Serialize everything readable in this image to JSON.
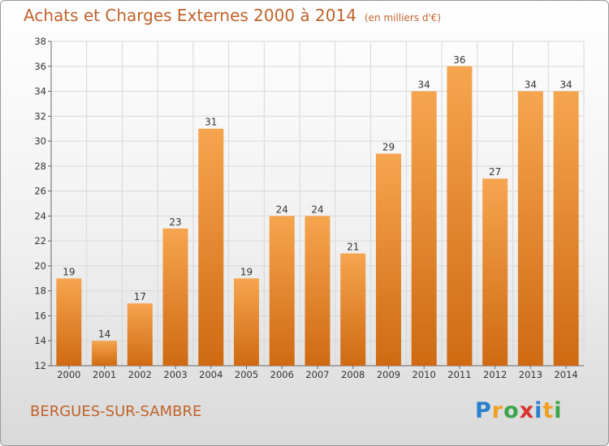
{
  "header": {
    "title": "Achats et Charges Externes 2000 à 2014",
    "unit": "(en milliers d'€)"
  },
  "footer": {
    "commune": "BERGUES-SUR-SAMBRE",
    "logo": "Proxiti",
    "logo_letters": [
      {
        "ch": "P",
        "color": "#2a7fcf"
      },
      {
        "ch": "r",
        "color": "#f0a020"
      },
      {
        "ch": "o",
        "color": "#3aa64a"
      },
      {
        "ch": "x",
        "color": "#d8322e"
      },
      {
        "ch": "i",
        "color": "#2a7fcf"
      },
      {
        "ch": "t",
        "color": "#f0a020"
      },
      {
        "ch": "i",
        "color": "#3aa64a"
      }
    ]
  },
  "colors": {
    "bar_light": "#f6a54f",
    "bar_dark": "#cf6a12",
    "title": "#c0622a",
    "grid": "#d8d8d8"
  },
  "chart_data": {
    "type": "bar",
    "title": "Achats et Charges Externes 2000 à 2014",
    "subtitle": "(en milliers d'€)",
    "xlabel": "",
    "ylabel": "",
    "categories": [
      "2000",
      "2001",
      "2002",
      "2003",
      "2004",
      "2005",
      "2006",
      "2007",
      "2008",
      "2009",
      "2010",
      "2011",
      "2012",
      "2013",
      "2014"
    ],
    "values": [
      19,
      14,
      17,
      23,
      31,
      19,
      24,
      24,
      21,
      29,
      34,
      36,
      27,
      34,
      34
    ],
    "ylim": [
      12,
      38
    ],
    "yticks": [
      12,
      14,
      16,
      18,
      20,
      22,
      24,
      26,
      28,
      30,
      32,
      34,
      36,
      38
    ],
    "grid": true,
    "legend": "none"
  }
}
